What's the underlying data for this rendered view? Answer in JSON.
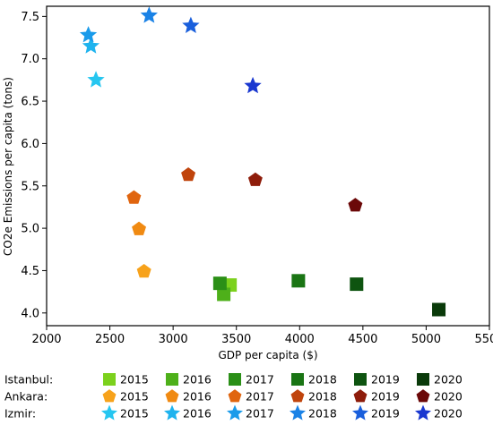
{
  "chart_data": {
    "type": "scatter",
    "xlabel": "GDP per capita ($)",
    "ylabel": "CO2e Emissions per capita (tons)",
    "xlim": [
      2000,
      5500
    ],
    "ylim": [
      3.85,
      7.62
    ],
    "xticks": [
      2000,
      2500,
      3000,
      3500,
      4000,
      4500,
      5000,
      5500
    ],
    "yticks": [
      4.0,
      4.5,
      5.0,
      5.5,
      6.0,
      6.5,
      7.0,
      7.5
    ],
    "xtick_labels": [
      "2000",
      "2500",
      "3000",
      "3500",
      "4000",
      "4500",
      "5000",
      "5500"
    ],
    "ytick_labels": [
      "4.0",
      "4.5",
      "5.0",
      "5.5",
      "6.0",
      "6.5",
      "7.0",
      "7.5"
    ],
    "grid": false,
    "legend_position": "below",
    "years": [
      "2015",
      "2016",
      "2017",
      "2018",
      "2019",
      "2020"
    ],
    "series": [
      {
        "name": "Istanbul:",
        "marker": "square",
        "colors": [
          "#7cd11d",
          "#4eb01a",
          "#2b8f17",
          "#1a7514",
          "#0e5410",
          "#0a3a0a"
        ],
        "points": [
          {
            "year": "2015",
            "x": 3450,
            "y": 4.33
          },
          {
            "year": "2016",
            "x": 3400,
            "y": 4.22
          },
          {
            "year": "2017",
            "x": 3370,
            "y": 4.35
          },
          {
            "year": "2018",
            "x": 3990,
            "y": 4.38
          },
          {
            "year": "2019",
            "x": 4450,
            "y": 4.34
          },
          {
            "year": "2020",
            "x": 5100,
            "y": 4.04
          }
        ]
      },
      {
        "name": "Ankara:",
        "marker": "pentagon",
        "colors": [
          "#f7a21b",
          "#f08a12",
          "#e0650f",
          "#c0440c",
          "#8e1c0a",
          "#6b0808"
        ],
        "points": [
          {
            "year": "2015",
            "x": 2770,
            "y": 4.49
          },
          {
            "year": "2016",
            "x": 2730,
            "y": 4.99
          },
          {
            "year": "2017",
            "x": 2690,
            "y": 5.36
          },
          {
            "year": "2018",
            "x": 3120,
            "y": 5.63
          },
          {
            "year": "2019",
            "x": 3650,
            "y": 5.57
          },
          {
            "year": "2020",
            "x": 4440,
            "y": 5.27
          }
        ]
      },
      {
        "name": "Izmir:",
        "marker": "star",
        "colors": [
          "#26c6f0",
          "#1eb3ee",
          "#1a9bea",
          "#1a82e6",
          "#1a5fdc",
          "#1a38d0"
        ],
        "points": [
          {
            "year": "2015",
            "x": 2390,
            "y": 6.75
          },
          {
            "year": "2016",
            "x": 2350,
            "y": 7.15
          },
          {
            "year": "2017",
            "x": 2330,
            "y": 7.28
          },
          {
            "year": "2018",
            "x": 2810,
            "y": 7.51
          },
          {
            "year": "2019",
            "x": 3140,
            "y": 7.39
          },
          {
            "year": "2020",
            "x": 3630,
            "y": 6.68
          }
        ]
      }
    ]
  }
}
